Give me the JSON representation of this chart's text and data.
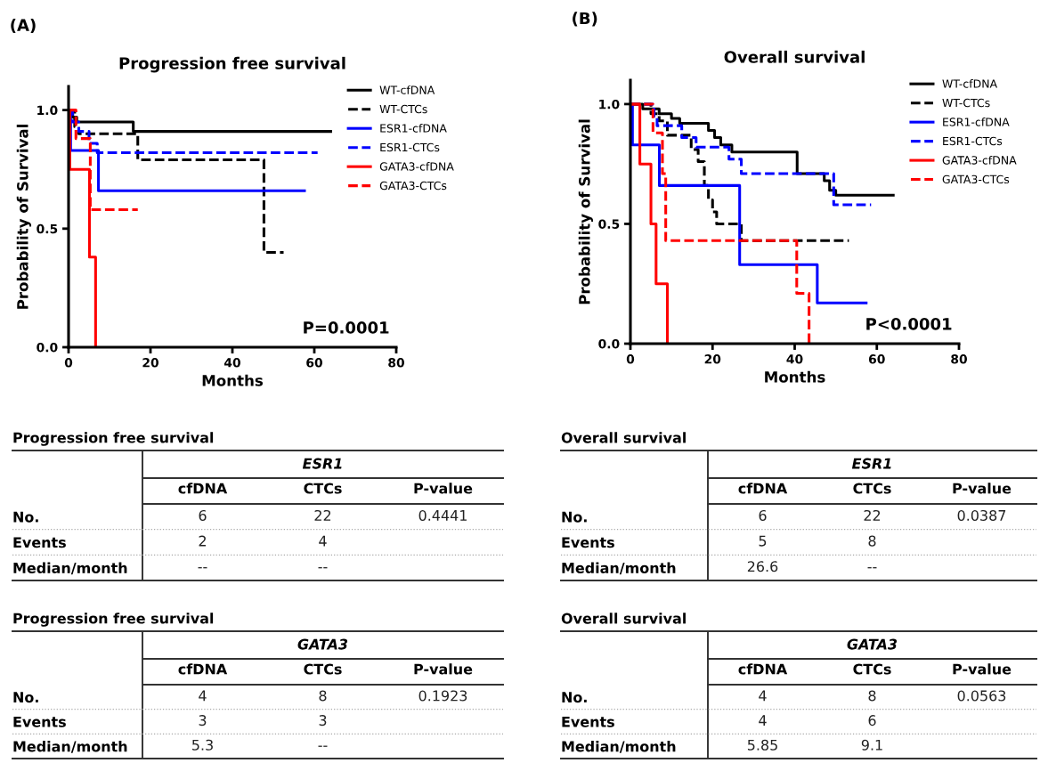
{
  "chart_data": [
    {
      "type": "step",
      "title": "Progression free survival",
      "xlabel": "Months",
      "ylabel": "Probability of Survival",
      "annotations": [
        "(A)",
        "P=0.0001"
      ],
      "xlim": [
        0,
        80
      ],
      "ylim": [
        0,
        1.1
      ],
      "xticks": [
        0,
        20,
        40,
        60,
        80
      ],
      "yticks": [
        {
          "value": 0,
          "label": "0.0"
        },
        {
          "value": 0.5,
          "label": "0.5"
        },
        {
          "value": 1,
          "label": "1.0"
        }
      ],
      "legend": "top right",
      "grid": false,
      "series": [
        {
          "name": "WT-cfDNA",
          "color": "#000000",
          "line_style": "solid",
          "x": [
            0,
            1,
            2,
            15.8,
            64
          ],
          "values": [
            1.0,
            0.97,
            0.95,
            0.91,
            0.91
          ]
        },
        {
          "name": "WT-CTCs",
          "color": "#000000",
          "line_style": "dashed",
          "x": [
            0,
            1.5,
            2.5,
            16.9,
            47.7,
            52.5
          ],
          "values": [
            1.0,
            0.93,
            0.9,
            0.79,
            0.4,
            0.4
          ]
        },
        {
          "name": "ESR1-cfDNA",
          "color": "#0000ff",
          "line_style": "solid",
          "x": [
            0,
            0.5,
            7.3,
            57.6
          ],
          "values": [
            1.0,
            0.83,
            0.66,
            0.66
          ]
        },
        {
          "name": "ESR1-CTCs",
          "color": "#0000ff",
          "line_style": "dashed",
          "x": [
            0,
            1,
            2.5,
            5,
            7,
            60.8
          ],
          "values": [
            1.0,
            0.95,
            0.91,
            0.86,
            0.82,
            0.82
          ]
        },
        {
          "name": "GATA3-cfDNA",
          "color": "#ff0000",
          "line_style": "solid",
          "x": [
            0,
            0.3,
            5.1,
            6.6
          ],
          "values": [
            1.0,
            0.75,
            0.38,
            0
          ]
        },
        {
          "name": "GATA3-CTCs",
          "color": "#ff0000",
          "line_style": "dashed",
          "x": [
            0,
            1.8,
            5.3,
            16.9
          ],
          "values": [
            1.0,
            0.88,
            0.58,
            0.58
          ]
        }
      ]
    },
    {
      "type": "step",
      "title": "Overall survival",
      "xlabel": "Months",
      "ylabel": "Probability of Survival",
      "annotations": [
        "(B)",
        "P<0.0001"
      ],
      "xlim": [
        0,
        80
      ],
      "ylim": [
        0,
        1.1
      ],
      "xticks": [
        0,
        20,
        40,
        60,
        80
      ],
      "yticks": [
        {
          "value": 0,
          "label": "0.0"
        },
        {
          "value": 0.5,
          "label": "0.5"
        },
        {
          "value": 1,
          "label": "1.0"
        }
      ],
      "legend": "top right",
      "grid": false,
      "series": [
        {
          "name": "WT-cfDNA",
          "color": "#000000",
          "line_style": "solid",
          "x": [
            0,
            3,
            7,
            10,
            12,
            19,
            20.5,
            22,
            24.7,
            40.6,
            47.2,
            48.5,
            50,
            64
          ],
          "values": [
            1.0,
            0.98,
            0.96,
            0.94,
            0.92,
            0.89,
            0.86,
            0.83,
            0.8,
            0.71,
            0.68,
            0.64,
            0.62,
            0.62
          ]
        },
        {
          "name": "WT-CTCs",
          "color": "#000000",
          "line_style": "dashed",
          "x": [
            0,
            5,
            7,
            9,
            14.8,
            16.5,
            18,
            19,
            20,
            21,
            27,
            53.2
          ],
          "values": [
            1.0,
            0.96,
            0.93,
            0.87,
            0.81,
            0.76,
            0.66,
            0.6,
            0.55,
            0.5,
            0.43,
            0.43
          ]
        },
        {
          "name": "ESR1-cfDNA",
          "color": "#0000ff",
          "line_style": "solid",
          "x": [
            0,
            0.5,
            7.05,
            26.6,
            45.5,
            57.4
          ],
          "values": [
            1.0,
            0.83,
            0.66,
            0.33,
            0.17,
            0.17
          ]
        },
        {
          "name": "ESR1-CTCs",
          "color": "#0000ff",
          "line_style": "dashed",
          "x": [
            0,
            5.75,
            6.5,
            12.5,
            16,
            24,
            27,
            49.5,
            58.6
          ],
          "values": [
            1.0,
            0.95,
            0.91,
            0.86,
            0.82,
            0.77,
            0.71,
            0.58,
            0.58
          ]
        },
        {
          "name": "GATA3-cfDNA",
          "color": "#ff0000",
          "line_style": "solid",
          "x": [
            0,
            2.3,
            5.0,
            6.25,
            9
          ],
          "values": [
            1.0,
            0.75,
            0.5,
            0.25,
            0
          ]
        },
        {
          "name": "GATA3-CTCs",
          "color": "#ff0000",
          "line_style": "dashed",
          "x": [
            0,
            5.5,
            7.8,
            8.6,
            40.5,
            43.5
          ],
          "values": [
            1.0,
            0.88,
            0.71,
            0.43,
            0.21,
            0
          ]
        }
      ]
    },
    {
      "type": "heatmap",
      "title": "Progression free survival",
      "subtitle": "ESR1",
      "categories": [
        "cfDNA",
        "CTCs",
        "P-value"
      ],
      "y_categories": [
        "No.",
        "Events",
        "Median/month"
      ],
      "cells": [
        [
          6,
          22,
          0.4441
        ],
        [
          2,
          4,
          null
        ],
        [
          null,
          null,
          null
        ]
      ],
      "cell_labels": [
        [
          "6",
          "22",
          "0.4441"
        ],
        [
          "2",
          "4",
          null
        ],
        [
          "--",
          "--",
          null
        ]
      ]
    },
    {
      "type": "heatmap",
      "title": "Overall survival",
      "subtitle": "ESR1",
      "categories": [
        "cfDNA",
        "CTCs",
        "P-value"
      ],
      "y_categories": [
        "No.",
        "Events",
        "Median/month"
      ],
      "cells": [
        [
          6,
          22,
          0.0387
        ],
        [
          5,
          8,
          null
        ],
        [
          26.6,
          null,
          null
        ]
      ],
      "cell_labels": [
        [
          "6",
          "22",
          "0.0387"
        ],
        [
          "5",
          "8",
          null
        ],
        [
          "26.6",
          "--",
          null
        ]
      ]
    },
    {
      "type": "heatmap",
      "title": "Progression free survival",
      "subtitle": "GATA3",
      "categories": [
        "cfDNA",
        "CTCs",
        "P-value"
      ],
      "y_categories": [
        "No.",
        "Events",
        "Median/month"
      ],
      "cells": [
        [
          4,
          8,
          0.1923
        ],
        [
          3,
          3,
          null
        ],
        [
          5.3,
          null,
          null
        ]
      ],
      "cell_labels": [
        [
          "4",
          "8",
          "0.1923"
        ],
        [
          "3",
          "3",
          null
        ],
        [
          "5.3",
          "--",
          null
        ]
      ]
    },
    {
      "type": "heatmap",
      "title": "Overall survival",
      "subtitle": "GATA3",
      "categories": [
        "cfDNA",
        "CTCs",
        "P-value"
      ],
      "y_categories": [
        "No.",
        "Events",
        "Median/month"
      ],
      "cells": [
        [
          4,
          8,
          0.0563
        ],
        [
          4,
          6,
          null
        ],
        [
          5.85,
          9.1,
          null
        ]
      ],
      "cell_labels": [
        [
          "4",
          "8",
          "0.0563"
        ],
        [
          "4",
          "6",
          null
        ],
        [
          "5.85",
          "9.1",
          null
        ]
      ]
    }
  ]
}
